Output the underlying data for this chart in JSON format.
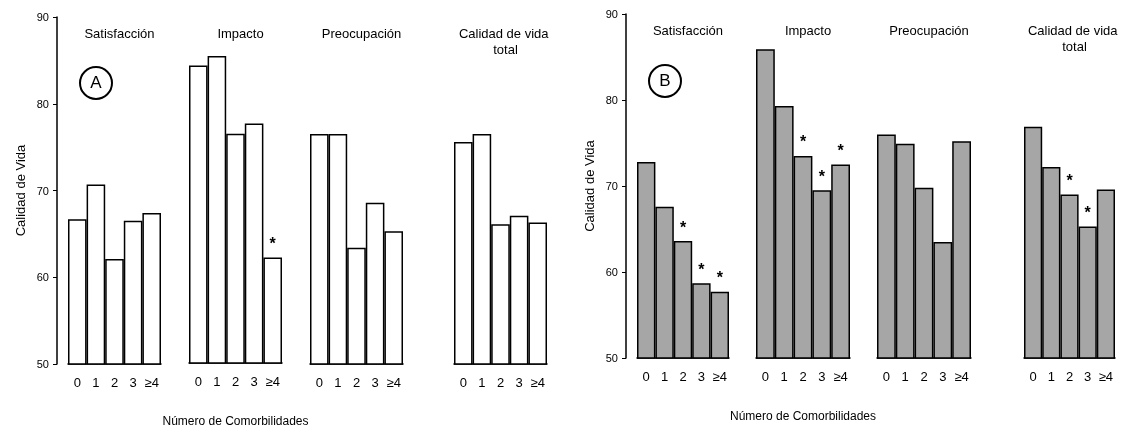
{
  "chart_data": [
    {
      "type": "bar",
      "title": "Satisfacción",
      "ylabel": "Calidad de Vida",
      "categories": [
        "0",
        "1",
        "2",
        "3",
        "≥4"
      ],
      "values": [
        66.7,
        70.7,
        62.1,
        66.5,
        67.4
      ],
      "color": "#ffffff",
      "ylim": [
        50,
        90
      ],
      "yticks": [
        50,
        60,
        70,
        80,
        90
      ],
      "annotations": [
        "A"
      ]
    },
    {
      "type": "bar",
      "title": "Impacto",
      "xlabel": "Número de Comorbilidades",
      "categories": [
        "0",
        "1",
        "2",
        "3",
        "≥4"
      ],
      "values": [
        84.4,
        85.5,
        76.5,
        77.7,
        62.2
      ],
      "color": "#ffffff",
      "ylim": [
        50,
        90
      ],
      "yticks": [
        50,
        60,
        70,
        80,
        90
      ],
      "tick_labels": "x",
      "annotations": [
        {
          "text": "*",
          "x": "≥4",
          "y": 62.2
        }
      ]
    },
    {
      "type": "bar",
      "title": "Preocupación",
      "categories": [
        "0",
        "1",
        "2",
        "3",
        "≥4"
      ],
      "values": [
        76.5,
        76.5,
        63.4,
        68.6,
        65.3
      ],
      "color": "#ffffff",
      "ylim": [
        50,
        90
      ],
      "yticks": [
        50,
        60,
        70,
        80,
        90
      ],
      "tick_labels": "x"
    },
    {
      "type": "bar",
      "title": "Calidad de vida total",
      "categories": [
        "0",
        "1",
        "2",
        "3",
        "≥4"
      ],
      "values": [
        75.6,
        76.5,
        66.1,
        67.1,
        66.3
      ],
      "color": "#ffffff",
      "ylim": [
        50,
        90
      ],
      "yticks": [
        50,
        60,
        70,
        80,
        90
      ],
      "tick_labels": "x"
    },
    {
      "type": "bar",
      "title": "Satisfacción",
      "ylabel": "Calidad de Vida",
      "categories": [
        "0",
        "1",
        "2",
        "3",
        "≥4"
      ],
      "values": [
        72.8,
        67.6,
        63.6,
        58.7,
        57.7
      ],
      "color": "#a6a6a6",
      "ylim": [
        50,
        90
      ],
      "yticks": [
        50,
        60,
        70,
        80,
        90
      ],
      "annotations": [
        "B",
        {
          "text": "*",
          "x": "2",
          "y": 63.6
        },
        {
          "text": "*",
          "x": "3",
          "y": 58.7
        },
        {
          "text": "*",
          "x": "≥4",
          "y": 57.7
        }
      ]
    },
    {
      "type": "bar",
      "title": "Impacto",
      "xlabel": "Número de Comorbilidades",
      "categories": [
        "0",
        "1",
        "2",
        "3",
        "≥4"
      ],
      "values": [
        85.9,
        79.3,
        73.5,
        69.5,
        72.5
      ],
      "color": "#a6a6a6",
      "ylim": [
        50,
        90
      ],
      "yticks": [
        50,
        60,
        70,
        80,
        90
      ],
      "tick_labels": "x",
      "annotations": [
        {
          "text": "*",
          "x": "2",
          "y": 73.5
        },
        {
          "text": "*",
          "x": "3",
          "y": 69.5
        },
        {
          "text": "*",
          "x": "≥4",
          "y": 72.5
        }
      ]
    },
    {
      "type": "bar",
      "title": "Preocupación",
      "categories": [
        "0",
        "1",
        "2",
        "3",
        "≥4"
      ],
      "values": [
        76.0,
        74.9,
        69.8,
        63.5,
        75.2
      ],
      "color": "#a6a6a6",
      "ylim": [
        50,
        90
      ],
      "yticks": [
        50,
        60,
        70,
        80,
        90
      ],
      "tick_labels": "x"
    },
    {
      "type": "bar",
      "title": "Calidad de vida total",
      "categories": [
        "0",
        "1",
        "2",
        "3",
        "≥4"
      ],
      "values": [
        76.9,
        72.2,
        69.0,
        65.3,
        69.6
      ],
      "color": "#a6a6a6",
      "ylim": [
        50,
        90
      ],
      "yticks": [
        50,
        60,
        70,
        80,
        90
      ],
      "tick_labels": "x",
      "annotations": [
        {
          "text": "*",
          "x": "2",
          "y": 69.0
        },
        {
          "text": "*",
          "x": "3",
          "y": 65.3
        }
      ]
    }
  ]
}
